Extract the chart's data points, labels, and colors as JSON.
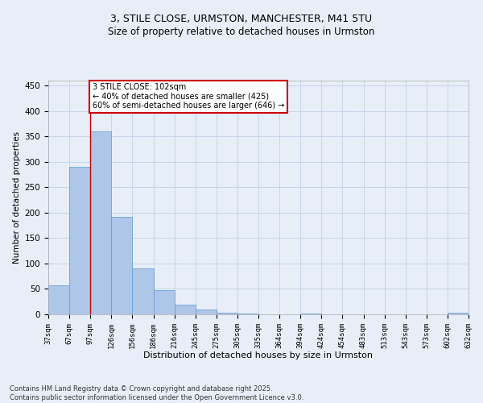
{
  "title_line1": "3, STILE CLOSE, URMSTON, MANCHESTER, M41 5TU",
  "title_line2": "Size of property relative to detached houses in Urmston",
  "xlabel": "Distribution of detached houses by size in Urmston",
  "ylabel": "Number of detached properties",
  "footnote": "Contains HM Land Registry data © Crown copyright and database right 2025.\nContains public sector information licensed under the Open Government Licence v3.0.",
  "bar_values": [
    57,
    290,
    360,
    192,
    90,
    48,
    19,
    9,
    3,
    1,
    0,
    0,
    1,
    0,
    0,
    0,
    0,
    0,
    0,
    3
  ],
  "bin_labels": [
    "37sqm",
    "67sqm",
    "97sqm",
    "126sqm",
    "156sqm",
    "186sqm",
    "216sqm",
    "245sqm",
    "275sqm",
    "305sqm",
    "335sqm",
    "364sqm",
    "394sqm",
    "424sqm",
    "454sqm",
    "483sqm",
    "513sqm",
    "543sqm",
    "573sqm",
    "602sqm",
    "632sqm"
  ],
  "bar_color": "#aec6e8",
  "bar_edge_color": "#5b9bd5",
  "grid_color": "#c8d4e8",
  "bg_color": "#e8eef8",
  "vertical_line_x": 2.0,
  "annotation_text": "3 STILE CLOSE: 102sqm\n← 40% of detached houses are smaller (425)\n60% of semi-detached houses are larger (646) →",
  "annotation_box_color": "#ffffff",
  "annotation_box_edge": "#cc0000",
  "ylim": [
    0,
    460
  ],
  "yticks": [
    0,
    50,
    100,
    150,
    200,
    250,
    300,
    350,
    400,
    450
  ]
}
